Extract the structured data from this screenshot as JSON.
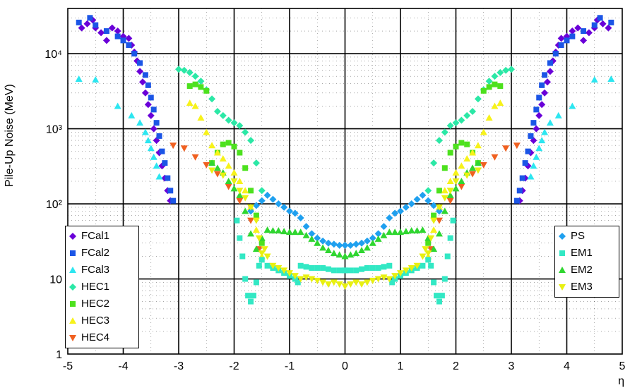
{
  "chart_data": {
    "type": "scatter",
    "xlabel": "η",
    "ylabel": "Pile-Up Noise (MeV)",
    "xlim": [
      -5,
      5
    ],
    "ylim": [
      1,
      40000
    ],
    "yscale": "log",
    "grid": true,
    "x_ticks": [
      "-5",
      "-4",
      "-3",
      "-2",
      "-1",
      "0",
      "1",
      "2",
      "3",
      "4",
      "5"
    ],
    "y_ticks": [
      {
        "value": 1,
        "label": "1"
      },
      {
        "value": 10,
        "label": "10"
      },
      {
        "value": 100,
        "label": "10²"
      },
      {
        "value": 1000,
        "label": "10³"
      },
      {
        "value": 10000,
        "label": "10⁴"
      }
    ],
    "legend_left": [
      "FCal1",
      "FCal2",
      "FCal3",
      "HEC1",
      "HEC2",
      "HEC3",
      "HEC4"
    ],
    "legend_right": [
      "PS",
      "EM1",
      "EM2",
      "EM3"
    ],
    "series": [
      {
        "name": "FCal1",
        "color": "#6a00d8",
        "marker": "diamond",
        "points": [
          [
            3.15,
            110
          ],
          [
            3.2,
            150
          ],
          [
            3.25,
            220
          ],
          [
            3.3,
            320
          ],
          [
            3.35,
            480
          ],
          [
            3.4,
            700
          ],
          [
            3.45,
            1000
          ],
          [
            3.5,
            1500
          ],
          [
            3.55,
            2100
          ],
          [
            3.6,
            3000
          ],
          [
            3.65,
            4200
          ],
          [
            3.7,
            5800
          ],
          [
            3.75,
            8000
          ],
          [
            3.8,
            10500
          ],
          [
            3.85,
            13000
          ],
          [
            3.9,
            16000
          ],
          [
            4.0,
            17000
          ],
          [
            4.1,
            20000
          ],
          [
            4.2,
            22000
          ],
          [
            4.3,
            15000
          ],
          [
            4.4,
            19000
          ],
          [
            4.5,
            22000
          ],
          [
            4.55,
            28000
          ],
          [
            4.65,
            25000
          ],
          [
            4.75,
            22000
          ]
        ]
      },
      {
        "name": "FCal2",
        "color": "#1b55e6",
        "marker": "square",
        "points": [
          [
            3.1,
            110
          ],
          [
            3.15,
            150
          ],
          [
            3.2,
            220
          ],
          [
            3.25,
            350
          ],
          [
            3.3,
            500
          ],
          [
            3.35,
            800
          ],
          [
            3.4,
            1200
          ],
          [
            3.45,
            1800
          ],
          [
            3.5,
            2600
          ],
          [
            3.55,
            3800
          ],
          [
            3.6,
            5200
          ],
          [
            3.7,
            7500
          ],
          [
            3.8,
            10000
          ],
          [
            3.9,
            13000
          ],
          [
            4.0,
            15000
          ],
          [
            4.1,
            17000
          ],
          [
            4.3,
            20000
          ],
          [
            4.5,
            24000
          ],
          [
            4.6,
            30000
          ],
          [
            4.8,
            26000
          ]
        ]
      },
      {
        "name": "FCal3",
        "color": "#2ce6f0",
        "marker": "triangle-up",
        "points": [
          [
            3.35,
            230
          ],
          [
            3.4,
            320
          ],
          [
            3.45,
            420
          ],
          [
            3.5,
            550
          ],
          [
            3.55,
            700
          ],
          [
            3.6,
            900
          ],
          [
            3.7,
            1200
          ],
          [
            3.85,
            1500
          ],
          [
            4.1,
            2000
          ],
          [
            4.5,
            4500
          ],
          [
            4.8,
            4600
          ]
        ]
      },
      {
        "name": "HEC1",
        "color": "#2be8a6",
        "marker": "diamond",
        "points": [
          [
            1.5,
            150
          ],
          [
            1.6,
            350
          ],
          [
            1.7,
            700
          ],
          [
            1.8,
            900
          ],
          [
            1.9,
            1100
          ],
          [
            2.0,
            1200
          ],
          [
            2.1,
            1300
          ],
          [
            2.2,
            1500
          ],
          [
            2.3,
            1700
          ],
          [
            2.4,
            2500
          ],
          [
            2.5,
            3300
          ],
          [
            2.6,
            4300
          ],
          [
            2.7,
            5000
          ],
          [
            2.8,
            5600
          ],
          [
            2.9,
            6000
          ],
          [
            3.0,
            6200
          ]
        ]
      },
      {
        "name": "HEC2",
        "color": "#4de11e",
        "marker": "square",
        "points": [
          [
            1.5,
            30
          ],
          [
            1.6,
            70
          ],
          [
            1.7,
            150
          ],
          [
            1.8,
            300
          ],
          [
            1.9,
            480
          ],
          [
            2.0,
            580
          ],
          [
            2.1,
            650
          ],
          [
            2.2,
            620
          ],
          [
            2.3,
            480
          ],
          [
            2.4,
            350
          ],
          [
            2.5,
            3200
          ],
          [
            2.6,
            3600
          ],
          [
            2.7,
            3900
          ],
          [
            2.8,
            3700
          ]
        ]
      },
      {
        "name": "HEC3",
        "color": "#f7f21a",
        "marker": "triangle-up",
        "points": [
          [
            1.5,
            20
          ],
          [
            1.6,
            45
          ],
          [
            1.7,
            90
          ],
          [
            1.8,
            150
          ],
          [
            1.9,
            200
          ],
          [
            2.0,
            260
          ],
          [
            2.1,
            320
          ],
          [
            2.2,
            400
          ],
          [
            2.3,
            480
          ],
          [
            2.4,
            600
          ],
          [
            2.5,
            900
          ],
          [
            2.6,
            1400
          ],
          [
            2.7,
            2000
          ],
          [
            2.8,
            2200
          ]
        ]
      },
      {
        "name": "HEC4",
        "color": "#f06020",
        "marker": "triangle-down",
        "points": [
          [
            1.55,
            25
          ],
          [
            1.7,
            60
          ],
          [
            1.9,
            110
          ],
          [
            2.1,
            170
          ],
          [
            2.3,
            250
          ],
          [
            2.5,
            330
          ],
          [
            2.7,
            420
          ],
          [
            2.9,
            550
          ],
          [
            3.1,
            600
          ]
        ]
      },
      {
        "name": "PS",
        "color": "#1fa0ef",
        "marker": "diamond",
        "points": [
          [
            0.0,
            28
          ],
          [
            0.1,
            28
          ],
          [
            0.2,
            29
          ],
          [
            0.3,
            30
          ],
          [
            0.4,
            32
          ],
          [
            0.5,
            35
          ],
          [
            0.6,
            40
          ],
          [
            0.7,
            50
          ],
          [
            0.8,
            65
          ],
          [
            0.9,
            75
          ],
          [
            1.0,
            80
          ],
          [
            1.1,
            90
          ],
          [
            1.2,
            100
          ],
          [
            1.3,
            115
          ],
          [
            1.4,
            130
          ],
          [
            1.5,
            110
          ],
          [
            1.6,
            95
          ],
          [
            1.7,
            80
          ]
        ]
      },
      {
        "name": "EM1",
        "color": "#32e8c4",
        "marker": "square",
        "points": [
          [
            0.0,
            13
          ],
          [
            0.1,
            13
          ],
          [
            0.2,
            13
          ],
          [
            0.3,
            13.5
          ],
          [
            0.4,
            14
          ],
          [
            0.5,
            14
          ],
          [
            0.6,
            14
          ],
          [
            0.7,
            14.5
          ],
          [
            0.8,
            15
          ],
          [
            0.85,
            9
          ],
          [
            0.9,
            10
          ],
          [
            1.0,
            11
          ],
          [
            1.1,
            12
          ],
          [
            1.2,
            13
          ],
          [
            1.3,
            14
          ],
          [
            1.4,
            15
          ],
          [
            1.5,
            18
          ],
          [
            1.55,
            15
          ],
          [
            1.6,
            9
          ],
          [
            1.65,
            6
          ],
          [
            1.7,
            5
          ],
          [
            1.75,
            6
          ],
          [
            1.8,
            10
          ],
          [
            1.85,
            20
          ],
          [
            1.9,
            35
          ],
          [
            1.95,
            60
          ]
        ]
      },
      {
        "name": "EM2",
        "color": "#2fd630",
        "marker": "triangle-up",
        "points": [
          [
            0.0,
            20
          ],
          [
            0.1,
            21
          ],
          [
            0.2,
            22
          ],
          [
            0.3,
            24
          ],
          [
            0.4,
            26
          ],
          [
            0.5,
            30
          ],
          [
            0.6,
            34
          ],
          [
            0.7,
            38
          ],
          [
            0.8,
            42
          ],
          [
            0.9,
            42
          ],
          [
            1.0,
            42
          ],
          [
            1.1,
            43
          ],
          [
            1.2,
            44
          ],
          [
            1.3,
            44
          ],
          [
            1.4,
            45
          ],
          [
            1.5,
            35
          ],
          [
            1.6,
            25
          ],
          [
            1.7,
            40
          ],
          [
            1.8,
            80
          ],
          [
            1.9,
            130
          ],
          [
            2.0,
            160
          ],
          [
            2.1,
            200
          ],
          [
            2.2,
            260
          ],
          [
            2.3,
            300
          ],
          [
            2.4,
            350
          ]
        ]
      },
      {
        "name": "EM3",
        "color": "#e8f010",
        "marker": "triangle-down",
        "points": [
          [
            0.0,
            8
          ],
          [
            0.1,
            8.5
          ],
          [
            0.2,
            9
          ],
          [
            0.3,
            8.5
          ],
          [
            0.4,
            9
          ],
          [
            0.5,
            9.5
          ],
          [
            0.6,
            10
          ],
          [
            0.7,
            10.5
          ],
          [
            0.8,
            10
          ],
          [
            0.9,
            11
          ],
          [
            1.0,
            12
          ],
          [
            1.1,
            13
          ],
          [
            1.2,
            14
          ],
          [
            1.3,
            15
          ],
          [
            1.4,
            20
          ],
          [
            1.45,
            25
          ],
          [
            1.5,
            22
          ],
          [
            1.55,
            35
          ],
          [
            1.6,
            60
          ],
          [
            1.7,
            90
          ],
          [
            1.8,
            120
          ],
          [
            1.9,
            150
          ],
          [
            2.0,
            200
          ],
          [
            2.2,
            240
          ],
          [
            2.4,
            280
          ]
        ]
      }
    ]
  }
}
